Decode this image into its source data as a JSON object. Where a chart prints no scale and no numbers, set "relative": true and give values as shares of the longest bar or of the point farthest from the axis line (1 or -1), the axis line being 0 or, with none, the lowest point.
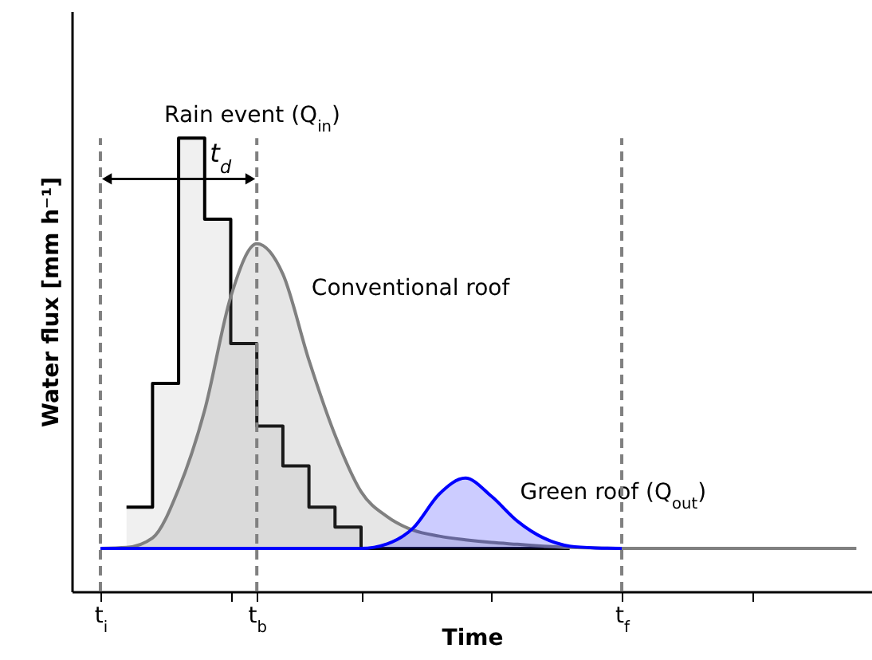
{
  "chart_data": {
    "type": "area",
    "relative": true,
    "xlabel": "Time",
    "ylabel": "Water flux [mm h⁻¹]",
    "categories": [
      "t$_{i}$",
      null,
      null,
      null,
      null,
      null,
      "t$_{b}$",
      null,
      null,
      null,
      null,
      null,
      null,
      null,
      null,
      null,
      null,
      null,
      null,
      null,
      "t$_{f}$",
      null,
      null,
      null,
      null,
      null,
      null,
      null,
      null,
      null
    ],
    "series": [
      {
        "name": "Rain event (Q$_{in}$)",
        "type": "step",
        "color": "#000000",
        "values": [
          null,
          0.186,
          0.459,
          1,
          0.821,
          0.547,
          0.365,
          0.277,
          0.186,
          0.142,
          0.095,
          0.095,
          0.095,
          0.095,
          0.095,
          0.095,
          0.095,
          0.095,
          0.095,
          null,
          null,
          null,
          null,
          null,
          null,
          null,
          null,
          null,
          null,
          null
        ]
      },
      {
        "name": "Conventional roof",
        "color": "#808080",
        "values": [
          0.095,
          0.097,
          0.118,
          0.226,
          0.4,
          0.65,
          0.767,
          0.7,
          0.51,
          0.345,
          0.22,
          0.165,
          0.135,
          0.122,
          0.114,
          0.108,
          0.104,
          0.1,
          0.097,
          0.096,
          0.095,
          0.095,
          0.095,
          0.095,
          0.095,
          0.095,
          0.095,
          0.095,
          0.095,
          0.095
        ]
      },
      {
        "name": "Green roof (Q$_{out}$)",
        "color": "#0000ff",
        "values": [
          0.095,
          0.095,
          0.095,
          0.095,
          0.095,
          0.095,
          0.095,
          0.095,
          0.095,
          0.095,
          0.095,
          0.105,
          0.14,
          0.215,
          0.25,
          0.21,
          0.155,
          0.118,
          0.1,
          0.096,
          0.095,
          null,
          null,
          null,
          null,
          null,
          null,
          null,
          null,
          null
        ]
      }
    ],
    "ref_lines": [
      {
        "axis": "x",
        "value": "t$_{i}$",
        "color": "#808080",
        "line_style": "dashed"
      },
      {
        "axis": "x",
        "value": "t$_{b}$",
        "color": "#808080",
        "line_style": "dashed"
      },
      {
        "axis": "x",
        "value": "t$_{f}$",
        "color": "#808080",
        "line_style": "dashed"
      }
    ],
    "annotations": [
      "t$_{d}$"
    ]
  }
}
